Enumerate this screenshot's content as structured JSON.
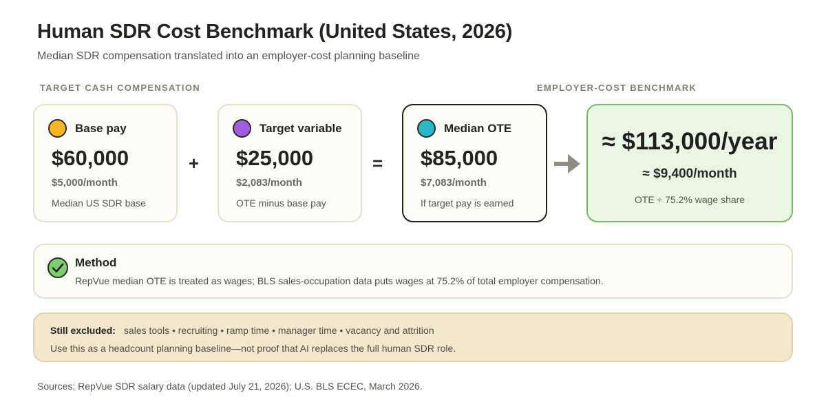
{
  "title": "Human SDR Cost Benchmark (United States, 2026)",
  "subtitle": "Median SDR compensation translated into an employer-cost planning baseline",
  "sections": {
    "left_label": "TARGET CASH COMPENSATION",
    "right_label": "EMPLOYER-COST BENCHMARK"
  },
  "cards": [
    {
      "name": "Base pay",
      "amount": "$60,000",
      "monthly": "$5,000/month",
      "note": "Median US SDR base",
      "dot_color": "#f8b623"
    },
    {
      "name": "Target variable",
      "amount": "$25,000",
      "monthly": "$2,083/month",
      "note": "OTE minus base pay",
      "dot_color": "#a05de0"
    },
    {
      "name": "Median OTE",
      "amount": "$85,000",
      "monthly": "$7,083/month",
      "note": "If target pay is earned",
      "dot_color": "#2ab8c8"
    }
  ],
  "operators": {
    "plus": "+",
    "equals": "="
  },
  "benchmark": {
    "annual": "≈ $113,000/year",
    "monthly": "≈ $9,400/month",
    "note": "OTE ÷ 75.2% wage share"
  },
  "method": {
    "title": "Method",
    "text": "RepVue median OTE is treated as wages; BLS sales-occupation data puts wages at 75.2% of total employer compensation."
  },
  "excluded": {
    "label": "Still excluded:",
    "items": "sales tools • recruiting • ramp time • manager time • vacancy and attrition",
    "note": "Use this as a headcount planning baseline—not proof that AI replaces the full human SDR role."
  },
  "sources": "Sources: RepVue SDR salary data (updated July 21, 2026); U.S. BLS ECEC, March 2026.",
  "colors": {
    "benchmark_fill": "#e9f6e3",
    "benchmark_border": "#79b868",
    "excluded_fill": "#f3e7cc",
    "check_fill": "#7dce6e"
  }
}
